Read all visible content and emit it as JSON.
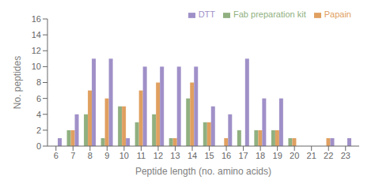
{
  "chart_data": {
    "type": "bar",
    "xlabel": "Peptide length (no. amino acids)",
    "ylabel": "No. peptides",
    "x": [
      6,
      7,
      8,
      9,
      10,
      11,
      12,
      13,
      14,
      15,
      16,
      17,
      18,
      19,
      20,
      21,
      22,
      23
    ],
    "series": [
      {
        "name": "Fab preparation kit",
        "color": "#90b080",
        "values": [
          0,
          2,
          4,
          1,
          5,
          3,
          4,
          1,
          6,
          3,
          0,
          2,
          2,
          2,
          1,
          0,
          0,
          0
        ]
      },
      {
        "name": "Papain",
        "color": "#e0a060",
        "values": [
          0,
          2,
          7,
          6,
          5,
          7,
          8,
          1,
          8,
          3,
          1,
          0,
          2,
          2,
          1,
          0,
          1,
          0
        ]
      },
      {
        "name": "DTT",
        "color": "#a090c8",
        "values": [
          1,
          4,
          11,
          11,
          1,
          10,
          10,
          10,
          10,
          5,
          4,
          11,
          6,
          6,
          0,
          0,
          1,
          1
        ]
      }
    ],
    "xlim": [
      5.5,
      23.8
    ],
    "xticks": [
      6,
      7,
      8,
      9,
      10,
      11,
      12,
      13,
      14,
      15,
      16,
      17,
      18,
      19,
      20,
      21,
      22,
      23
    ],
    "ylim": [
      0,
      16
    ],
    "yticks": [
      0,
      2,
      4,
      6,
      8,
      10,
      12,
      14,
      16
    ],
    "legend": "upper right",
    "grid": false
  }
}
